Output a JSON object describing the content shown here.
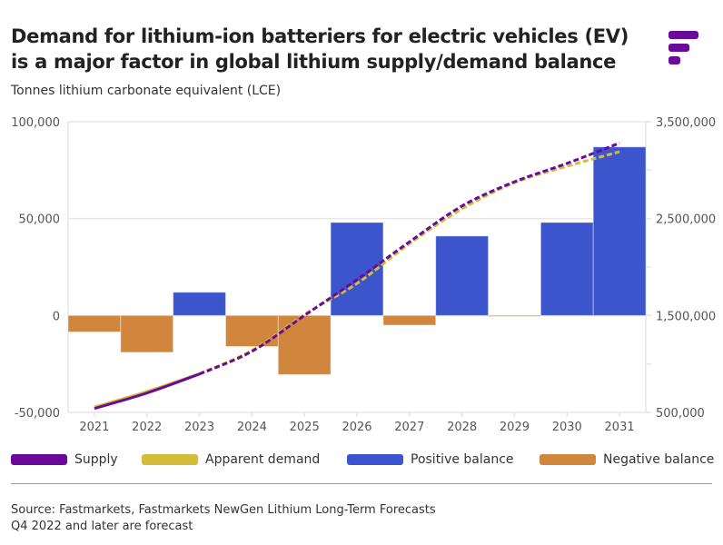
{
  "title": "Demand for lithium-ion batteriers for electric vehicles (EV) is a major factor in global lithium supply/demand balance",
  "subtitle": "Tonnes lithium carbonate equivalent (LCE)",
  "source_lines": [
    "Source: Fastmarkets, Fastmarkets NewGen Lithium Long-Term Forecasts",
    "Q4 2022 and later are forecast"
  ],
  "logo": "fastmarkets-logo",
  "colors": {
    "supply": "#6a0a9b",
    "demand": "#d4bc3a",
    "positive": "#3c55cc",
    "negative": "#d0873d"
  },
  "chart_data": {
    "type": "bar+line",
    "categories": [
      "2021",
      "2022",
      "2023",
      "2024",
      "2025",
      "2026",
      "2027",
      "2028",
      "2029",
      "2030",
      "2031"
    ],
    "left_axis": {
      "ylim": [
        -50000,
        100000
      ],
      "ticks": [
        "-50,000",
        "0",
        "50,000",
        "100,000"
      ],
      "tick_values": [
        -50000,
        0,
        50000,
        100000
      ]
    },
    "right_axis": {
      "ylim": [
        500000,
        3500000
      ],
      "ticks": [
        "500,000",
        "1,500,000",
        "2,500,000",
        "3,500,000"
      ],
      "tick_values": [
        500000,
        1500000,
        2500000,
        3500000
      ]
    },
    "balance": [
      -8500,
      -19000,
      12000,
      -16000,
      -30500,
      48000,
      -5000,
      41000,
      -500,
      48000,
      87000
    ],
    "series": [
      {
        "name": "Supply",
        "axis": "right",
        "values": [
          540000,
          700000,
          895000,
          1130000,
          1500000,
          1870000,
          2260000,
          2630000,
          2880000,
          3070000,
          3280000
        ]
      },
      {
        "name": "Apparent demand",
        "axis": "right",
        "values": [
          555000,
          715000,
          900000,
          1140000,
          1510000,
          1830000,
          2240000,
          2600000,
          2870000,
          3040000,
          3190000
        ]
      }
    ],
    "forecast_from": "2023",
    "legend": [
      "Supply",
      "Apparent demand",
      "Positive balance",
      "Negative balance"
    ],
    "legend_position": "bottom",
    "grid": true
  }
}
